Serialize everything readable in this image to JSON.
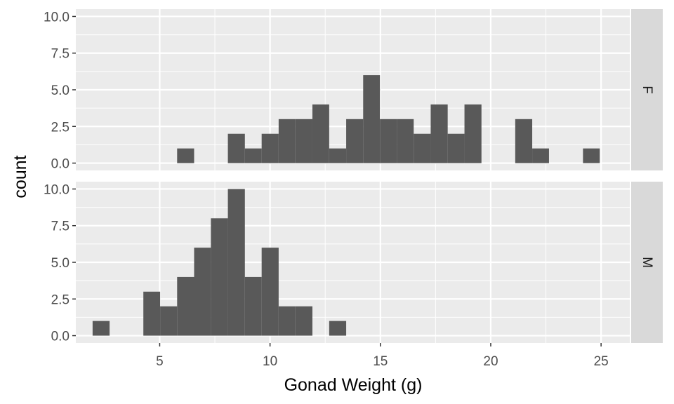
{
  "chart_data": {
    "type": "bar",
    "subtype": "faceted histogram",
    "xlabel": "Gonad Weight (g)",
    "ylabel": "count",
    "xlim": [
      1.2,
      26.3
    ],
    "ylim": [
      -0.5,
      10.5
    ],
    "x_ticks": [
      5,
      10,
      15,
      20,
      25
    ],
    "x_tick_labels": [
      "5",
      "10",
      "15",
      "20",
      "25"
    ],
    "y_ticks": [
      0,
      2.5,
      5,
      7.5,
      10
    ],
    "y_tick_labels": [
      "0.0",
      "2.5",
      "5.0",
      "7.5",
      "10.0"
    ],
    "bin_width": 0.766,
    "grid": true,
    "bar_color": "#595959",
    "panel_background": "#ebebeb",
    "strip_background": "#d9d9d9",
    "facets": [
      {
        "label": "F",
        "bins": [
          {
            "x0": 5.79,
            "x1": 6.56,
            "count": 1
          },
          {
            "x0": 8.09,
            "x1": 8.86,
            "count": 2
          },
          {
            "x0": 8.86,
            "x1": 9.62,
            "count": 1
          },
          {
            "x0": 9.62,
            "x1": 10.39,
            "count": 2
          },
          {
            "x0": 10.39,
            "x1": 11.15,
            "count": 3
          },
          {
            "x0": 11.15,
            "x1": 11.92,
            "count": 3
          },
          {
            "x0": 11.92,
            "x1": 12.68,
            "count": 4
          },
          {
            "x0": 12.68,
            "x1": 13.45,
            "count": 1
          },
          {
            "x0": 13.45,
            "x1": 14.22,
            "count": 3
          },
          {
            "x0": 14.22,
            "x1": 14.98,
            "count": 6
          },
          {
            "x0": 14.98,
            "x1": 15.75,
            "count": 3
          },
          {
            "x0": 15.75,
            "x1": 16.51,
            "count": 3
          },
          {
            "x0": 16.51,
            "x1": 17.28,
            "count": 2
          },
          {
            "x0": 17.28,
            "x1": 18.05,
            "count": 4
          },
          {
            "x0": 18.05,
            "x1": 18.81,
            "count": 2
          },
          {
            "x0": 18.81,
            "x1": 19.58,
            "count": 4
          },
          {
            "x0": 21.11,
            "x1": 21.88,
            "count": 3
          },
          {
            "x0": 21.88,
            "x1": 22.64,
            "count": 1
          },
          {
            "x0": 24.18,
            "x1": 24.94,
            "count": 1
          }
        ]
      },
      {
        "label": "M",
        "bins": [
          {
            "x0": 1.96,
            "x1": 2.73,
            "count": 1
          },
          {
            "x0": 4.26,
            "x1": 5.02,
            "count": 3
          },
          {
            "x0": 5.02,
            "x1": 5.79,
            "count": 2
          },
          {
            "x0": 5.79,
            "x1": 6.56,
            "count": 4
          },
          {
            "x0": 6.56,
            "x1": 7.32,
            "count": 6
          },
          {
            "x0": 7.32,
            "x1": 8.09,
            "count": 8
          },
          {
            "x0": 8.09,
            "x1": 8.86,
            "count": 10
          },
          {
            "x0": 8.86,
            "x1": 9.62,
            "count": 4
          },
          {
            "x0": 9.62,
            "x1": 10.39,
            "count": 6
          },
          {
            "x0": 10.39,
            "x1": 11.15,
            "count": 2
          },
          {
            "x0": 11.15,
            "x1": 11.92,
            "count": 2
          },
          {
            "x0": 12.68,
            "x1": 13.45,
            "count": 1
          }
        ]
      }
    ]
  }
}
